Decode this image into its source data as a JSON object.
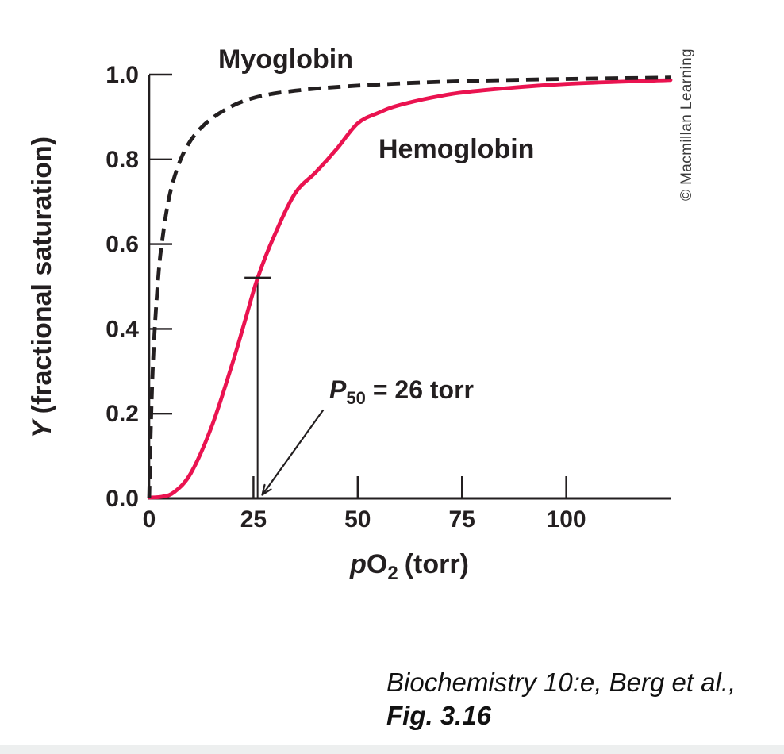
{
  "chart": {
    "labels": {
      "myoglobin": "Myoglobin",
      "hemoglobin": "Hemoglobin",
      "p50": {
        "p": "P",
        "sub": "50",
        "rest": "= 26 torr"
      },
      "x_title": {
        "p": "p",
        "O": "O",
        "sub": "2",
        "rest": "(torr)"
      },
      "y_title": {
        "y": "Y",
        "rest": "(fractional saturation)"
      }
    }
  },
  "chart_data": {
    "type": "line",
    "title": "",
    "xlabel": "pO2 (torr)",
    "ylabel": "Y (fractional saturation)",
    "xlim": [
      0,
      125
    ],
    "ylim": [
      0,
      1
    ],
    "grid": false,
    "x_ticks": [
      0,
      25,
      50,
      75,
      100
    ],
    "y_ticks": [
      "0.0",
      "0.2",
      "0.4",
      "0.6",
      "0.8",
      "1.0"
    ],
    "legend_position": "inline-labels",
    "series": [
      {
        "name": "Myoglobin",
        "line_style": "dashed",
        "color": "#231f20",
        "points": [
          [
            0,
            0
          ],
          [
            0.4,
            0.17
          ],
          [
            1,
            0.34
          ],
          [
            2,
            0.5
          ],
          [
            3,
            0.6
          ],
          [
            5,
            0.72
          ],
          [
            8,
            0.81
          ],
          [
            12,
            0.87
          ],
          [
            18,
            0.916
          ],
          [
            25,
            0.945
          ],
          [
            35,
            0.962
          ],
          [
            50,
            0.974
          ],
          [
            70,
            0.983
          ],
          [
            95,
            0.989
          ],
          [
            125,
            0.993
          ]
        ]
      },
      {
        "name": "Hemoglobin",
        "line_style": "solid",
        "color": "#ea1350",
        "points": [
          [
            0,
            0.002
          ],
          [
            3,
            0.004
          ],
          [
            6,
            0.015
          ],
          [
            10,
            0.06
          ],
          [
            15,
            0.17
          ],
          [
            20,
            0.32
          ],
          [
            23,
            0.42
          ],
          [
            26,
            0.52
          ],
          [
            30,
            0.62
          ],
          [
            35,
            0.72
          ],
          [
            40,
            0.77
          ],
          [
            45,
            0.825
          ],
          [
            50,
            0.885
          ],
          [
            55,
            0.91
          ],
          [
            60,
            0.928
          ],
          [
            70,
            0.95
          ],
          [
            80,
            0.963
          ],
          [
            100,
            0.978
          ],
          [
            125,
            0.987
          ]
        ]
      }
    ],
    "annotations": {
      "p50_torr": 26,
      "p50_label": "P50 = 26 torr",
      "half_saturation_marker": 0.52
    }
  },
  "copyright": "© Macmillan Learning",
  "citation": {
    "line1": "Biochemistry 10:e, Berg et al.,",
    "line2": "Fig. 3.16"
  }
}
